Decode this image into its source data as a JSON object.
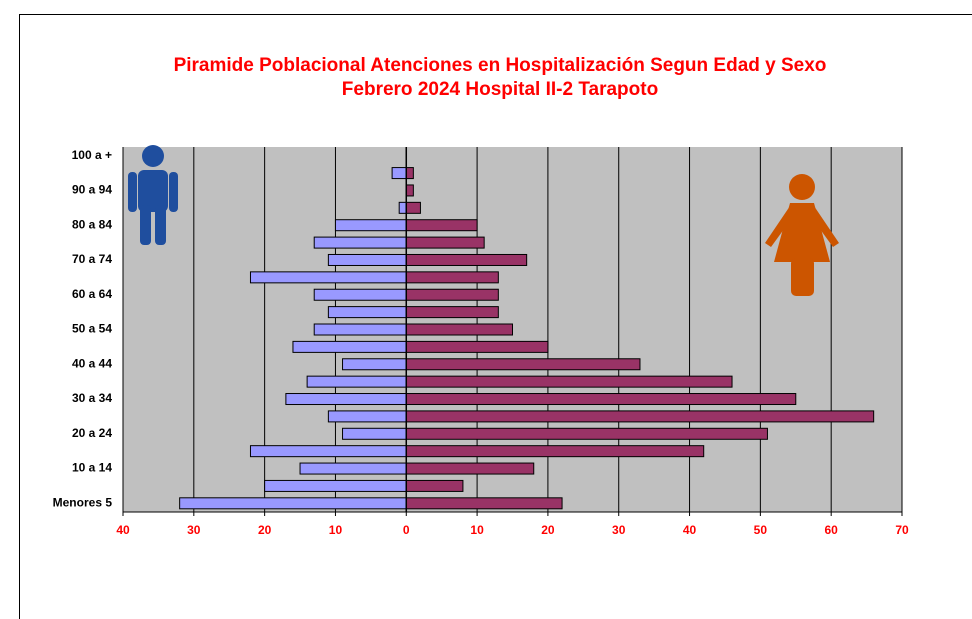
{
  "chart_data": {
    "type": "pyramid",
    "title": "Piramide Poblacional  Atenciones en Hospitalización Segun Edad y Sexo",
    "subtitle": "Febrero 2024  Hospital II-2 Tarapoto",
    "categories": [
      "Menores 5",
      null,
      "10 a 14",
      null,
      "20 a 24",
      null,
      "30 a 34",
      null,
      "40 a 44",
      null,
      "50 a 54",
      null,
      "60 a 64",
      null,
      "70 a 74",
      null,
      "80 a 84",
      null,
      "90 a 94",
      null,
      "100 a +"
    ],
    "series": [
      {
        "color": "#9999ff",
        "values": [
          -32,
          -20,
          -15,
          -22,
          -9,
          -11,
          -17,
          -14,
          -9,
          -16,
          -13,
          -11,
          -13,
          -22,
          -11,
          -13,
          -10,
          -1,
          0,
          -2,
          0
        ]
      },
      {
        "color": "#993366",
        "values": [
          22,
          8,
          18,
          42,
          51,
          66,
          55,
          46,
          33,
          20,
          15,
          13,
          13,
          13,
          17,
          11,
          10,
          2,
          1,
          1,
          0
        ]
      }
    ],
    "xlim": [
      -40,
      70
    ],
    "xticks": [
      {
        "value": -40,
        "label": "40"
      },
      {
        "value": -30,
        "label": "30"
      },
      {
        "value": -20,
        "label": "20"
      },
      {
        "value": -10,
        "label": "10"
      },
      0,
      10,
      20,
      30,
      40,
      50,
      60,
      70
    ],
    "grid": true
  }
}
